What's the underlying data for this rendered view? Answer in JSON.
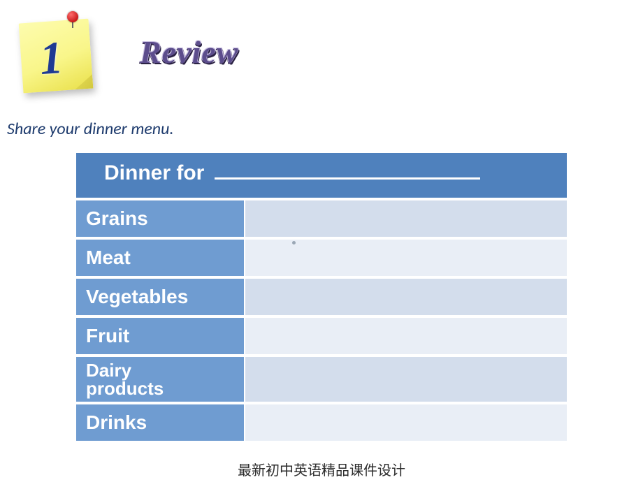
{
  "sticky": {
    "number": "1"
  },
  "title": "Review",
  "instruction": "Share your dinner menu.",
  "table": {
    "header_prefix": "Dinner for",
    "header_bg": "#4f81bd",
    "row_label_bg": "#6f9cd1",
    "alt_row_bg_light": "#e9eef6",
    "alt_row_bg_dark": "#d3ddec",
    "text_color": "#ffffff",
    "rows": [
      {
        "label": "Grains",
        "value": ""
      },
      {
        "label": "Meat",
        "value": ""
      },
      {
        "label": "Vegetables",
        "value": ""
      },
      {
        "label": "Fruit",
        "value": ""
      },
      {
        "label": "Dairy products",
        "value": ""
      },
      {
        "label": "Drinks",
        "value": ""
      }
    ]
  },
  "footer": "最新初中英语精品课件设计",
  "colors": {
    "title_main": "#5c4d8c",
    "title_shadow_dark": "#2b2244",
    "title_shadow_light": "#c8bfe0",
    "instruction": "#1f3c6e",
    "sticky_number": "#1f3a93"
  }
}
